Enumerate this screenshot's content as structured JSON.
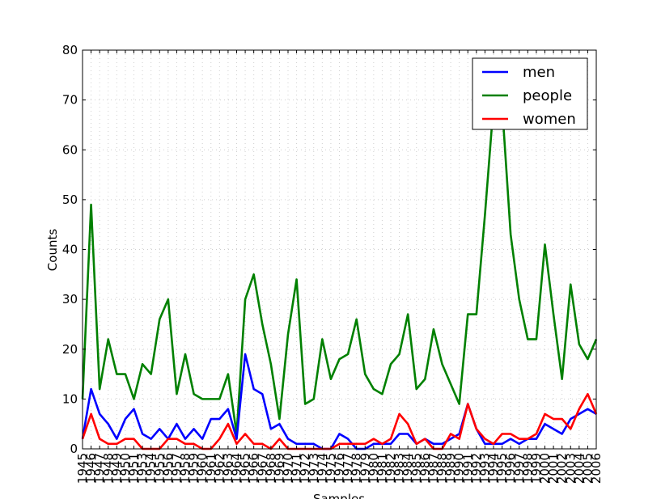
{
  "chart_data": {
    "type": "line",
    "title": "",
    "xlabel": "Samples",
    "ylabel": "Counts",
    "ylim": [
      0,
      80
    ],
    "yticks": [
      "0",
      "10",
      "20",
      "30",
      "40",
      "50",
      "60",
      "70",
      "80"
    ],
    "grid": true,
    "legend_position": "top-right",
    "categories": [
      "1945",
      "1946",
      "1947",
      "1948",
      "1949",
      "1950",
      "1951",
      "1953",
      "1954",
      "1955",
      "1956",
      "1957",
      "1958",
      "1959",
      "1960",
      "1961",
      "1962",
      "1963",
      "1964",
      "1965",
      "1966",
      "1967",
      "1968",
      "1969",
      "1970",
      "1971",
      "1972",
      "1973",
      "1974",
      "1975",
      "1976",
      "1977",
      "1978",
      "1979",
      "1980",
      "1981",
      "1982",
      "1983",
      "1984",
      "1985",
      "1986",
      "1987",
      "1988",
      "1989",
      "1990",
      "1991",
      "1992",
      "1993",
      "1994",
      "1995",
      "1996",
      "1997",
      "1998",
      "1999",
      "2000",
      "2001",
      "2002",
      "2003",
      "2004",
      "2005",
      "2006"
    ],
    "series": [
      {
        "name": "men",
        "color": "#0000ff",
        "values": [
          2,
          12,
          7,
          5,
          2,
          6,
          8,
          3,
          2,
          4,
          2,
          5,
          2,
          4,
          2,
          6,
          6,
          8,
          2,
          19,
          12,
          11,
          4,
          5,
          2,
          1,
          1,
          1,
          0,
          0,
          3,
          2,
          0,
          0,
          1,
          1,
          1,
          3,
          3,
          1,
          2,
          1,
          1,
          2,
          3,
          9,
          4,
          1,
          1,
          1,
          2,
          1,
          2,
          2,
          5,
          4,
          3,
          6,
          7,
          8,
          7
        ]
      },
      {
        "name": "people",
        "color": "#008000",
        "values": [
          10,
          49,
          12,
          22,
          15,
          15,
          10,
          17,
          15,
          26,
          30,
          11,
          19,
          11,
          10,
          10,
          10,
          15,
          3,
          30,
          35,
          25,
          17,
          6,
          23,
          34,
          9,
          10,
          22,
          14,
          18,
          19,
          26,
          15,
          12,
          11,
          17,
          19,
          27,
          12,
          14,
          24,
          17,
          13,
          9,
          27,
          27,
          47,
          69,
          69,
          43,
          30,
          22,
          22,
          41,
          27,
          14,
          33,
          21,
          18,
          22
        ]
      },
      {
        "name": "women",
        "color": "#ff0000",
        "values": [
          2,
          7,
          2,
          1,
          1,
          2,
          2,
          0,
          0,
          0,
          2,
          2,
          1,
          1,
          0,
          0,
          2,
          5,
          1,
          3,
          1,
          1,
          0,
          2,
          0,
          0,
          0,
          0,
          0,
          0,
          1,
          1,
          1,
          1,
          2,
          1,
          2,
          7,
          5,
          1,
          2,
          0,
          0,
          3,
          2,
          9,
          4,
          2,
          1,
          3,
          3,
          2,
          2,
          3,
          7,
          6,
          6,
          4,
          8,
          11,
          7
        ]
      }
    ]
  }
}
